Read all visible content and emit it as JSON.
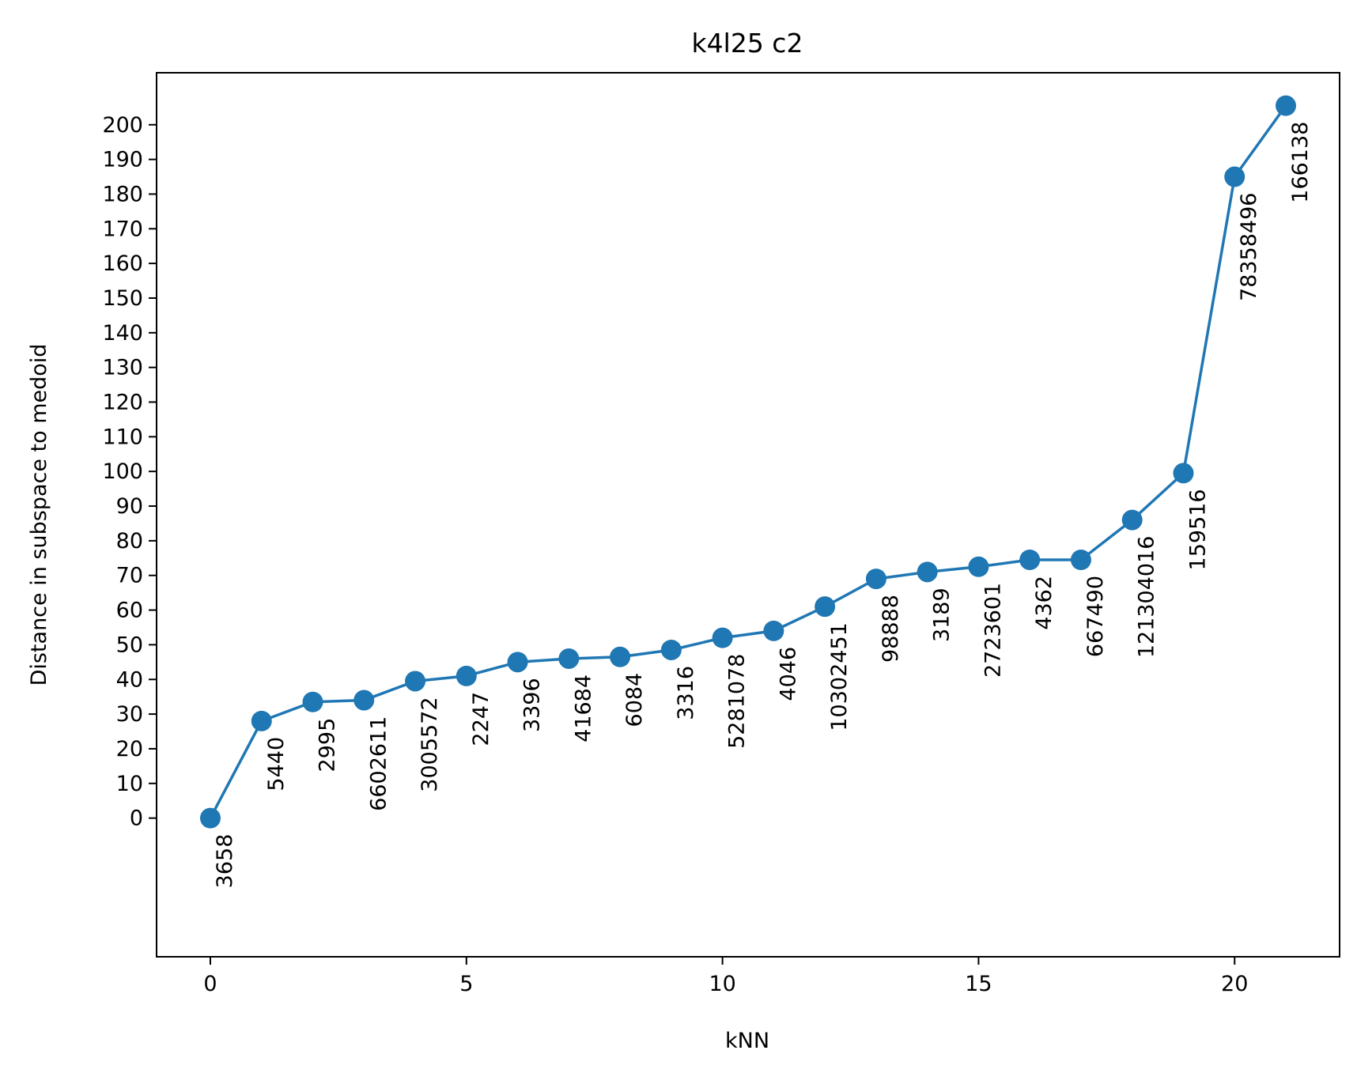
{
  "chart_data": {
    "type": "line",
    "title": "k4l25 c2",
    "xlabel": "kNN",
    "ylabel": "Distance in subspace to medoid",
    "xlim": [
      -1.05,
      22.05
    ],
    "ylim": [
      -40,
      215
    ],
    "x_ticks": [
      0,
      5,
      10,
      15,
      20
    ],
    "y_ticks": [
      0,
      10,
      20,
      30,
      40,
      50,
      60,
      70,
      80,
      90,
      100,
      110,
      120,
      130,
      140,
      150,
      160,
      170,
      180,
      190,
      200
    ],
    "grid": false,
    "color": "#1f77b4",
    "series": [
      {
        "x": [
          0,
          1,
          2,
          3,
          4,
          5,
          6,
          7,
          8,
          9,
          10,
          11,
          12,
          13,
          14,
          15,
          16,
          17,
          18,
          19,
          20,
          21
        ],
        "y": [
          0,
          28,
          33.5,
          34,
          39.5,
          41,
          45,
          46,
          46.5,
          48.5,
          52,
          54,
          61,
          69,
          71,
          72.5,
          74.5,
          74.5,
          86,
          99.5,
          185,
          205.5
        ],
        "point_labels": [
          "3658",
          "5440",
          "2995",
          "6602611",
          "3005572",
          "2247",
          "3396",
          "41684",
          "6084",
          "3316",
          "5281078",
          "4046",
          "10302451",
          "98888",
          "3189",
          "2723601",
          "4362",
          "667490",
          "121304016",
          "159516",
          "78358496",
          "166138"
        ]
      }
    ]
  }
}
